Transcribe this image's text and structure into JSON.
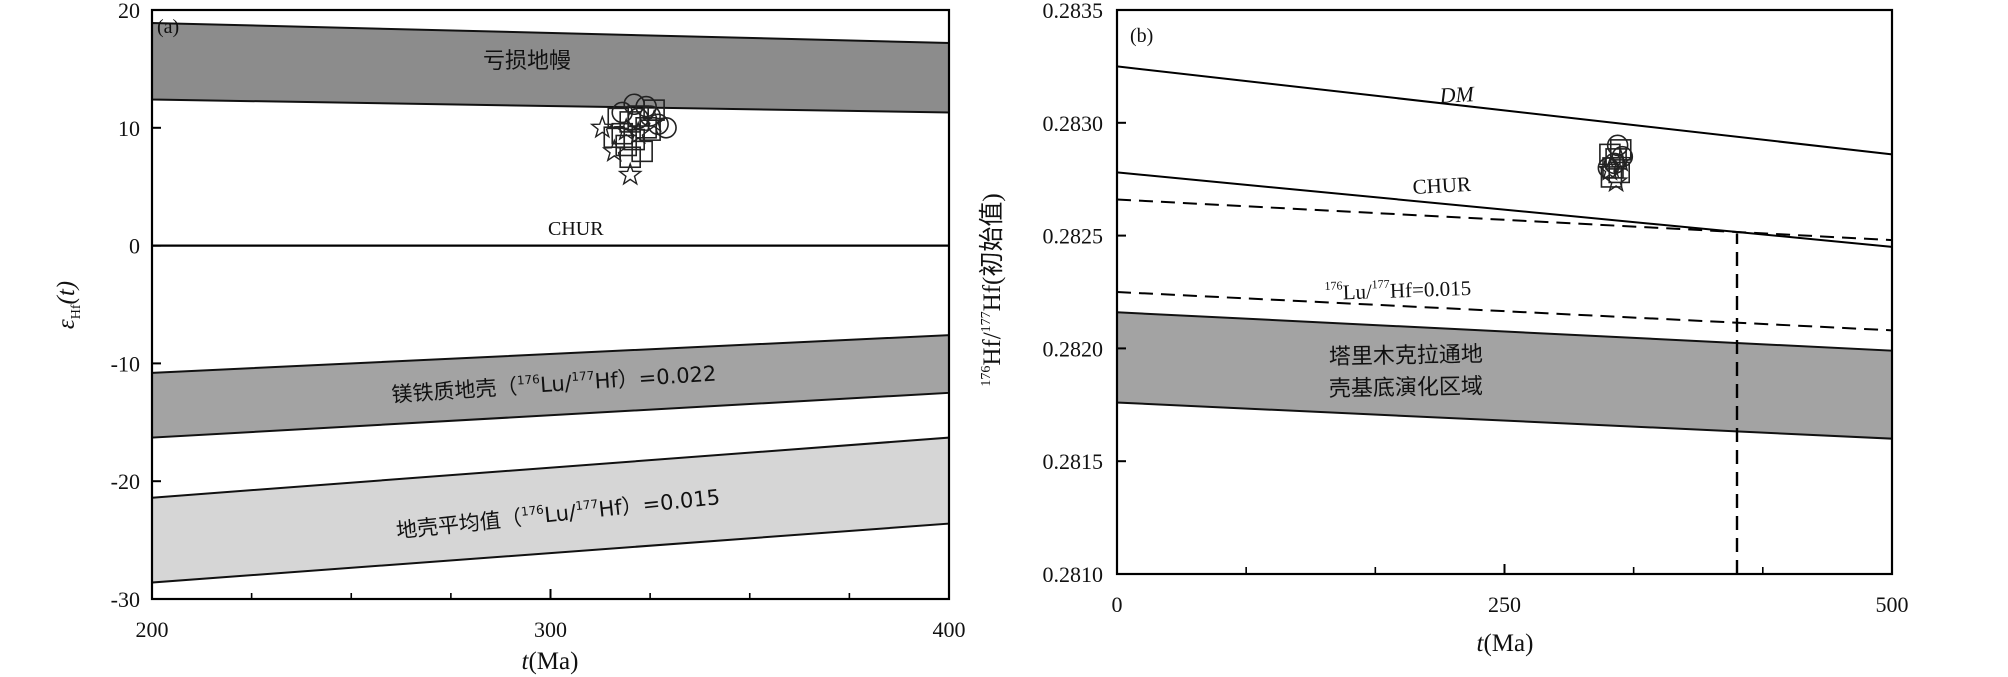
{
  "chart_data": [
    {
      "panel": "(a)",
      "type": "scatter",
      "xlabel_italic": "t",
      "xlabel_unit": "(Ma)",
      "ylabel_main": "ε",
      "ylabel_sub": "Hf",
      "ylabel_arg": "(t)",
      "xlim": [
        200,
        400
      ],
      "ylim": [
        -30,
        20
      ],
      "xticks": [
        200,
        300,
        400
      ],
      "yticks": [
        -30,
        -20,
        -10,
        0,
        10,
        20
      ],
      "bands": [
        {
          "label": "亏损地幔",
          "color": "#8c8c8c",
          "top": [
            [
              200,
              18.9
            ],
            [
              400,
              17.2
            ]
          ],
          "bottom": [
            [
              200,
              12.4
            ],
            [
              400,
              11.3
            ]
          ]
        },
        {
          "label_pre": "镁铁质地壳（",
          "label_sup1": "176",
          "label_mid1": "Lu/",
          "label_sup2": "177",
          "label_mid2": "Hf）=0.022",
          "color": "#a3a3a3",
          "top": [
            [
              200,
              -10.8
            ],
            [
              400,
              -7.6
            ]
          ],
          "bottom": [
            [
              200,
              -16.3
            ],
            [
              400,
              -12.5
            ]
          ]
        },
        {
          "label_pre": "地壳平均值（",
          "label_sup1": "176",
          "label_mid1": "Lu/",
          "label_sup2": "177",
          "label_mid2": "Hf）=0.015",
          "color": "#d6d6d6",
          "top": [
            [
              200,
              -21.4
            ],
            [
              400,
              -16.3
            ]
          ],
          "bottom": [
            [
              200,
              -28.6
            ],
            [
              400,
              -23.6
            ]
          ]
        }
      ],
      "reference_line": {
        "label": "CHUR",
        "y": 0
      },
      "points": [
        {
          "x": 318,
          "y": 9.5,
          "m": "square"
        },
        {
          "x": 320,
          "y": 10.5,
          "m": "square"
        },
        {
          "x": 322,
          "y": 11.0,
          "m": "square"
        },
        {
          "x": 324,
          "y": 10.0,
          "m": "square"
        },
        {
          "x": 319,
          "y": 8.5,
          "m": "square"
        },
        {
          "x": 321,
          "y": 9.0,
          "m": "square"
        },
        {
          "x": 326,
          "y": 11.5,
          "m": "square"
        },
        {
          "x": 317,
          "y": 10.8,
          "m": "square"
        },
        {
          "x": 323,
          "y": 8.0,
          "m": "square"
        },
        {
          "x": 325,
          "y": 9.8,
          "m": "square"
        },
        {
          "x": 320,
          "y": 7.5,
          "m": "square"
        },
        {
          "x": 316,
          "y": 9.2,
          "m": "square"
        },
        {
          "x": 327,
          "y": 10.3,
          "m": "circle"
        },
        {
          "x": 322,
          "y": 10.8,
          "m": "circle"
        },
        {
          "x": 318,
          "y": 11.3,
          "m": "circle"
        },
        {
          "x": 324,
          "y": 11.8,
          "m": "circle"
        },
        {
          "x": 329,
          "y": 10.0,
          "m": "circle"
        },
        {
          "x": 321,
          "y": 12.0,
          "m": "circle"
        },
        {
          "x": 325,
          "y": 11.0,
          "m": "circle"
        },
        {
          "x": 320,
          "y": 6.0,
          "m": "star"
        },
        {
          "x": 316,
          "y": 8.0,
          "m": "star"
        },
        {
          "x": 313,
          "y": 10.0,
          "m": "star"
        },
        {
          "x": 322,
          "y": 9.5,
          "m": "star"
        },
        {
          "x": 326,
          "y": 10.5,
          "m": "star"
        },
        {
          "x": 319,
          "y": 9.8,
          "m": "star"
        }
      ]
    },
    {
      "panel": "(b)",
      "type": "scatter",
      "xlabel_italic": "t",
      "xlabel_unit": "(Ma)",
      "ylabel_sup1": "176",
      "ylabel_mid1": "Hf/",
      "ylabel_sup2": "177",
      "ylabel_mid2": "Hf(初始值)",
      "xlim": [
        0,
        500
      ],
      "ylim": [
        0.281,
        0.2835
      ],
      "xticks": [
        0,
        250,
        500
      ],
      "yticks": [
        0.281,
        0.2815,
        0.282,
        0.2825,
        0.283,
        0.2835
      ],
      "lines": [
        {
          "label": "DM",
          "style": "solid",
          "points": [
            [
              0,
              0.28325
            ],
            [
              500,
              0.28286
            ]
          ]
        },
        {
          "label": "CHUR",
          "style": "solid",
          "points": [
            [
              0,
              0.28278
            ],
            [
              500,
              0.28245
            ]
          ]
        },
        {
          "label": "",
          "style": "dashed",
          "points": [
            [
              0,
              0.28266
            ],
            [
              500,
              0.28248
            ]
          ]
        },
        {
          "label_sup": "176",
          "label_mid": "Lu/",
          "label_sup2": "177",
          "label_end": "Hf=0.015",
          "style": "dashed",
          "points": [
            [
              0,
              0.28225
            ],
            [
              500,
              0.28208
            ]
          ]
        }
      ],
      "band": {
        "label_line1": "塔里木克拉通地",
        "label_line2": "壳基底演化区域",
        "color": "#a3a3a3",
        "top": [
          [
            0,
            0.28216
          ],
          [
            500,
            0.28199
          ]
        ],
        "bottom": [
          [
            0,
            0.28176
          ],
          [
            500,
            0.2816
          ]
        ]
      },
      "vertical_dashed": {
        "x": 400,
        "y_from": 0.281,
        "y_to": 0.28251
      },
      "points": [
        {
          "x": 320,
          "y": 0.2828,
          "m": "square"
        },
        {
          "x": 322,
          "y": 0.28284,
          "m": "square"
        },
        {
          "x": 324,
          "y": 0.28278,
          "m": "square"
        },
        {
          "x": 318,
          "y": 0.28286,
          "m": "square"
        },
        {
          "x": 325,
          "y": 0.28288,
          "m": "square"
        },
        {
          "x": 319,
          "y": 0.28276,
          "m": "square"
        },
        {
          "x": 323,
          "y": 0.2829,
          "m": "circle"
        },
        {
          "x": 321,
          "y": 0.28282,
          "m": "circle"
        },
        {
          "x": 326,
          "y": 0.28285,
          "m": "circle"
        },
        {
          "x": 317,
          "y": 0.2828,
          "m": "circle"
        },
        {
          "x": 322,
          "y": 0.28274,
          "m": "star"
        },
        {
          "x": 318,
          "y": 0.28279,
          "m": "star"
        },
        {
          "x": 325,
          "y": 0.28283,
          "m": "star"
        }
      ]
    }
  ]
}
